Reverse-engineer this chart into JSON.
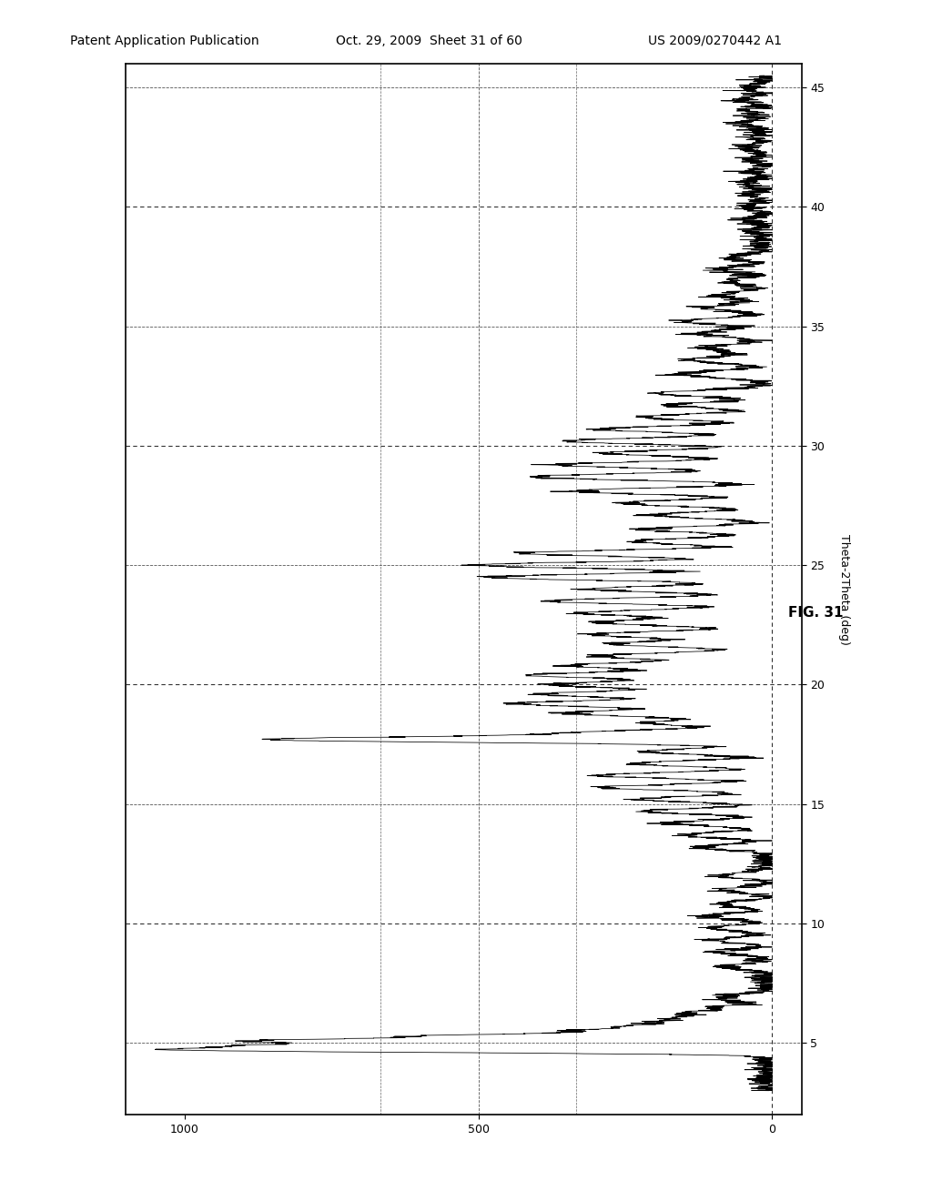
{
  "header_left": "Patent Application Publication",
  "header_mid": "Oct. 29, 2009  Sheet 31 of 60",
  "header_right": "US 2009/0270442 A1",
  "fig_label": "FIG. 31",
  "axis_ylabel": "Theta-2Theta (deg)",
  "x2theta_ticks": [
    5,
    10,
    15,
    20,
    25,
    30,
    35,
    40,
    45
  ],
  "intensity_ticks": [
    0,
    500,
    1000
  ],
  "xlim_intensity": [
    1100,
    -50
  ],
  "ylim_2theta": [
    2,
    46
  ],
  "background_color": "#ffffff",
  "line_color": "#000000",
  "grid_color": "#555555",
  "header_fontsize": 10,
  "axis_label_fontsize": 9,
  "tick_fontsize": 9,
  "fig_label_fontsize": 11
}
